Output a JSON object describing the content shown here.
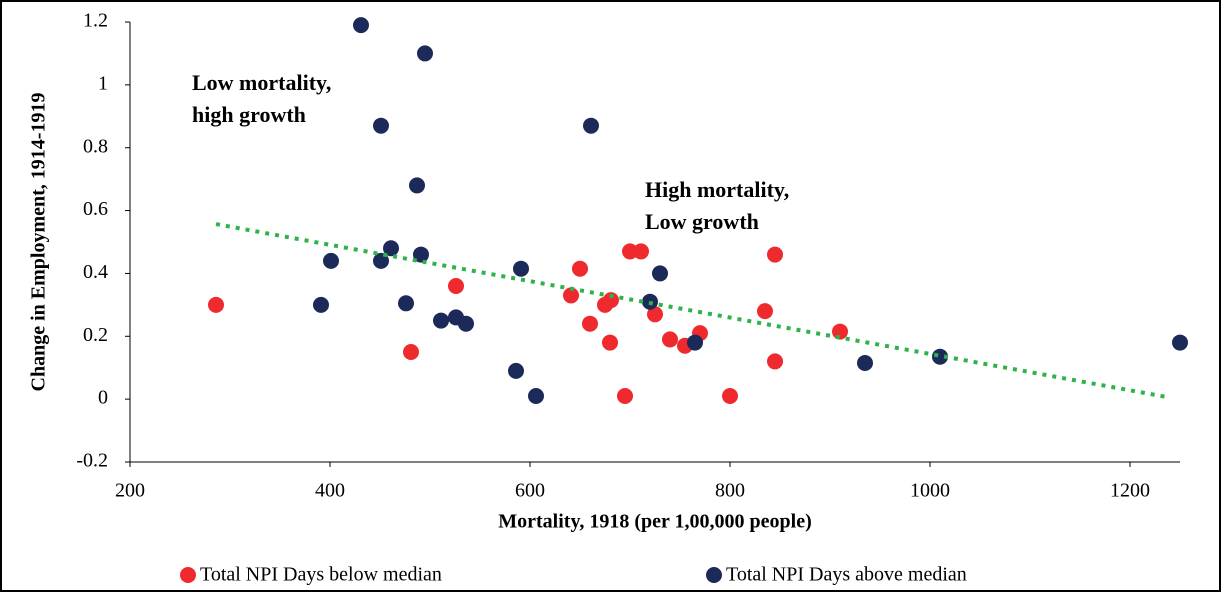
{
  "chart_data": {
    "type": "scatter",
    "x_label": "Mortality, 1918 (per 1,00,000 people)",
    "y_label": "Change in Employment, 1914-1919",
    "xlim": [
      200,
      1250
    ],
    "ylim": [
      -0.2,
      1.2
    ],
    "xticks": [
      200,
      400,
      600,
      800,
      1000,
      1200
    ],
    "yticks": [
      -0.2,
      0,
      0.2,
      0.4,
      0.6,
      0.8,
      1,
      1.2
    ],
    "legend": "bottom",
    "series": [
      {
        "name": "Total NPI Days below median",
        "color": "#ee2a2f",
        "x": [
          286,
          526,
          481,
          641,
          650,
          660,
          675,
          681,
          680,
          695,
          700,
          711,
          725,
          740,
          755,
          770,
          800,
          835,
          845,
          845,
          910
        ],
        "values": [
          0.3,
          0.36,
          0.15,
          0.33,
          0.415,
          0.24,
          0.3,
          0.315,
          0.18,
          0.01,
          0.47,
          0.47,
          0.27,
          0.19,
          0.17,
          0.21,
          0.01,
          0.28,
          0.46,
          0.12,
          0.215
        ]
      },
      {
        "name": "Total NPI Days above median",
        "color": "#1c2a5a",
        "x": [
          431,
          495,
          451,
          661,
          487,
          401,
          391,
          451,
          461,
          491,
          476,
          511,
          526,
          536,
          586,
          606,
          591,
          730,
          720,
          765,
          935,
          1010,
          1250
        ],
        "values": [
          1.19,
          1.1,
          0.87,
          0.87,
          0.68,
          0.44,
          0.3,
          0.44,
          0.48,
          0.46,
          0.305,
          0.25,
          0.26,
          0.24,
          0.09,
          0.01,
          0.415,
          0.4,
          0.31,
          0.18,
          0.115,
          0.135,
          0.18
        ]
      }
    ],
    "trendline": {
      "color": "#2db34a",
      "x": [
        286,
        1240
      ],
      "values": [
        0.557,
        0.005
      ]
    },
    "annotations": [
      {
        "lines": [
          "Low mortality,",
          "high growth"
        ],
        "x": 262,
        "y": 1.0
      },
      {
        "lines": [
          "High mortality,",
          "Low growth"
        ],
        "x": 715,
        "y": 0.66
      }
    ]
  }
}
